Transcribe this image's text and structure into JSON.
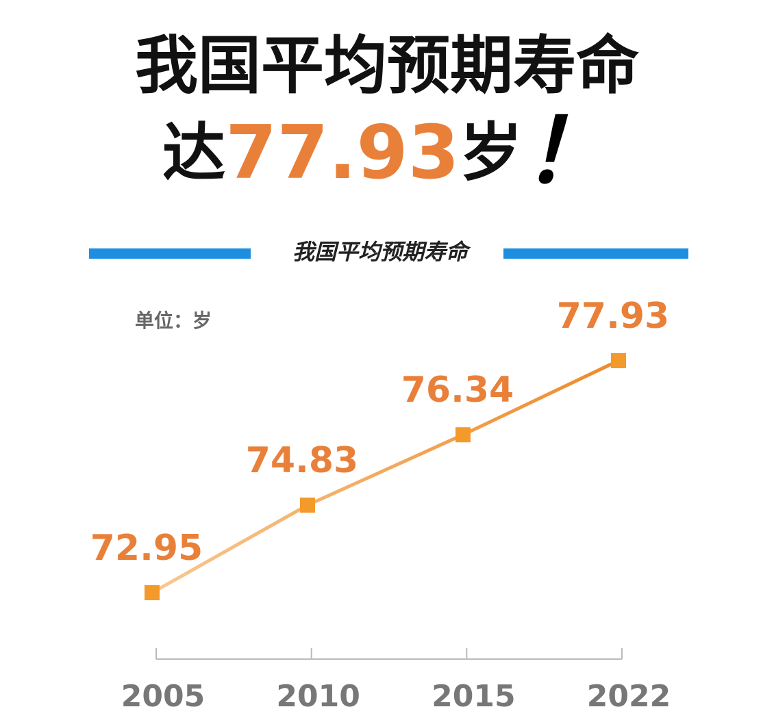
{
  "header": {
    "title": "我国平均预期寿命",
    "prefix": "达",
    "number": "77.93",
    "suffix": "岁",
    "mark": "！"
  },
  "chart_data": {
    "type": "line",
    "title": "我国平均预期寿命",
    "unit": "单位：岁",
    "categories": [
      "2005",
      "2010",
      "2015",
      "2022"
    ],
    "values": [
      72.95,
      74.83,
      76.34,
      77.93
    ],
    "color": "#f0892e",
    "marker_color": "#f39a2a",
    "label_color": "#e9803a",
    "accent_color": "#1e8fe0"
  }
}
